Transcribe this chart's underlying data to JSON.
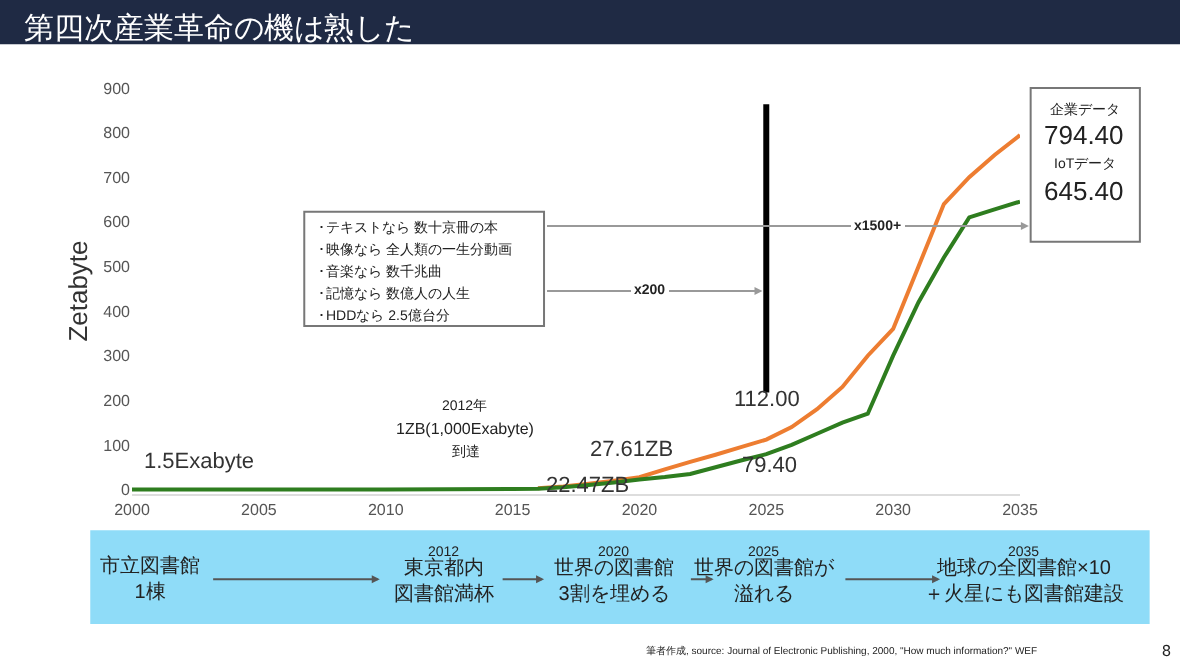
{
  "chart_data": {
    "type": "line",
    "title": "第四次産業革命の機は熟した",
    "ylabel": "Zetabyte",
    "x": [
      2000,
      2005,
      2010,
      2015,
      2016,
      2017,
      2018,
      2019,
      2020,
      2021,
      2022,
      2023,
      2024,
      2025,
      2026,
      2027,
      2028,
      2029,
      2030,
      2031,
      2032,
      2033,
      2034,
      2035
    ],
    "series": [
      {
        "color": "#ed7d31",
        "values": [
          null,
          null,
          null,
          null,
          3,
          7,
          13,
          20,
          27.61,
          45,
          62,
          78,
          95,
          112,
          140,
          180,
          230,
          300,
          360,
          500,
          640,
          700,
          750,
          794.4
        ]
      },
      {
        "color": "#2e7d1f",
        "values": [
          0,
          0,
          0,
          1,
          2,
          5,
          10,
          16,
          22.47,
          28,
          35,
          50,
          65,
          79.4,
          100,
          125,
          150,
          170,
          300,
          420,
          520,
          610,
          628,
          645.4
        ]
      }
    ],
    "xlim": [
      2000,
      2035
    ],
    "xticks": [
      2000,
      2005,
      2010,
      2015,
      2020,
      2025,
      2030,
      2035
    ],
    "ylim": [
      -10,
      900
    ],
    "yticks": [
      0,
      100,
      200,
      300,
      400,
      500,
      600,
      700,
      800,
      900
    ],
    "grid": false,
    "marker": "none",
    "line_style": "solid",
    "ref_lines": [
      {
        "axis": "x",
        "value": 2025,
        "label": null,
        "color": "#000000"
      }
    ],
    "annotations": [
      {
        "text": "1.5Exabyte",
        "x": 2000,
        "y": 0.0015
      },
      "2012年",
      "1ZB(1,000Exabyte)",
      "到達",
      {
        "text": "27.61ZB",
        "x": 2020,
        "y": 27.61
      },
      {
        "text": "22.47ZB",
        "x": 2020,
        "y": 22.47
      },
      {
        "text": "112.00",
        "x": 2025,
        "y": 112
      },
      {
        "text": "79.40",
        "x": 2025,
        "y": 79.4
      },
      "企業データ",
      "794.40",
      "IoTデータ",
      "645.40",
      "x200",
      "x1500+",
      "･テキストなら 数十京冊の本",
      "･映像なら 全人類の一生分動画",
      "･音楽なら 数千兆曲",
      "･記憶なら 数億人の人生",
      "･HDDなら 2.5億台分",
      "市立図書館1棟",
      "2012",
      "東京都内図書館満杯",
      "2020",
      "世界の図書館3割を埋める",
      "2025",
      "世界の図書館が溢れる",
      "2035",
      "地球の全図書館×10＋火星にも図書館建設",
      "筆者作成, source: Journal of Electronic Publishing, 2000, \"How much information?\" WEF",
      "8"
    ]
  }
}
